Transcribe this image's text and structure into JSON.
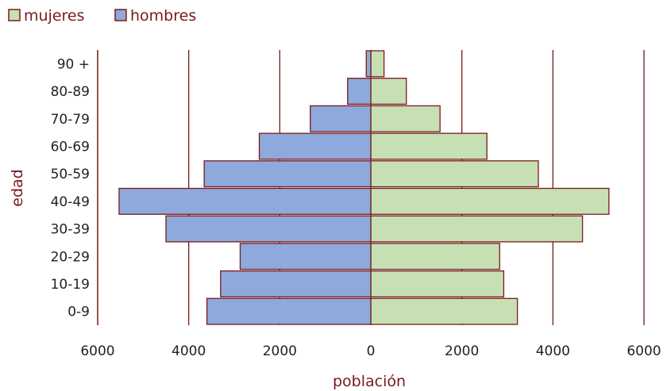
{
  "chart_data": {
    "type": "bar",
    "orientation": "horizontal-population-pyramid",
    "categories": [
      "0-9",
      "10-19",
      "20-29",
      "30-39",
      "40-49",
      "50-59",
      "60-69",
      "70-79",
      "80-89",
      "90 +"
    ],
    "series": [
      {
        "name": "mujeres",
        "side": "right",
        "color": "#c6e0b4",
        "values": [
          3220,
          2920,
          2830,
          4650,
          5230,
          3680,
          2550,
          1520,
          780,
          290
        ]
      },
      {
        "name": "hombres",
        "side": "left",
        "color": "#8ea9db",
        "values": [
          3600,
          3300,
          2870,
          4500,
          5530,
          3660,
          2450,
          1330,
          510,
          100
        ]
      }
    ],
    "xlabel": "población",
    "ylabel": "edad",
    "xlim": [
      -6000,
      6000
    ],
    "xticks": [
      -6000,
      -4000,
      -2000,
      0,
      2000,
      4000,
      6000
    ],
    "xtick_labels": [
      "6000",
      "4000",
      "2000",
      "0",
      "2000",
      "4000",
      "6000"
    ],
    "grid": "vertical",
    "legend_position": "top-left",
    "bar_edge_color": "#7a1a1a",
    "grid_color": "#7a1a1a"
  }
}
